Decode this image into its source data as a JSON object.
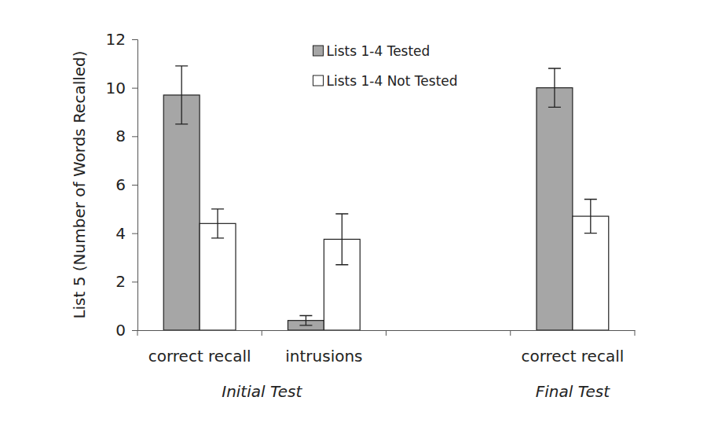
{
  "chart_data": {
    "type": "bar",
    "y_label": "List 5 (Number of Words Recalled)",
    "categories": [
      "correct recall",
      "intrusions",
      null,
      "correct recall"
    ],
    "x_groups": [
      {
        "label": "Initial Test",
        "categories": [
          0,
          1
        ]
      },
      {
        "label": "Final Test",
        "categories": [
          3
        ]
      }
    ],
    "series": [
      {
        "name": "Lists 1-4 Tested",
        "color": "#a6a6a6",
        "values": [
          9.7,
          0.4,
          null,
          10.0
        ],
        "errors": [
          1.2,
          0.2,
          null,
          0.8
        ]
      },
      {
        "name": "Lists 1-4 Not Tested",
        "color": "#ffffff",
        "values": [
          4.4,
          3.75,
          null,
          4.7
        ],
        "errors": [
          0.6,
          1.05,
          null,
          0.7
        ]
      }
    ],
    "ylim": [
      0,
      12
    ],
    "yticks": [
      0,
      2,
      4,
      6,
      8,
      10,
      12
    ],
    "grid": false,
    "legend": "top"
  }
}
